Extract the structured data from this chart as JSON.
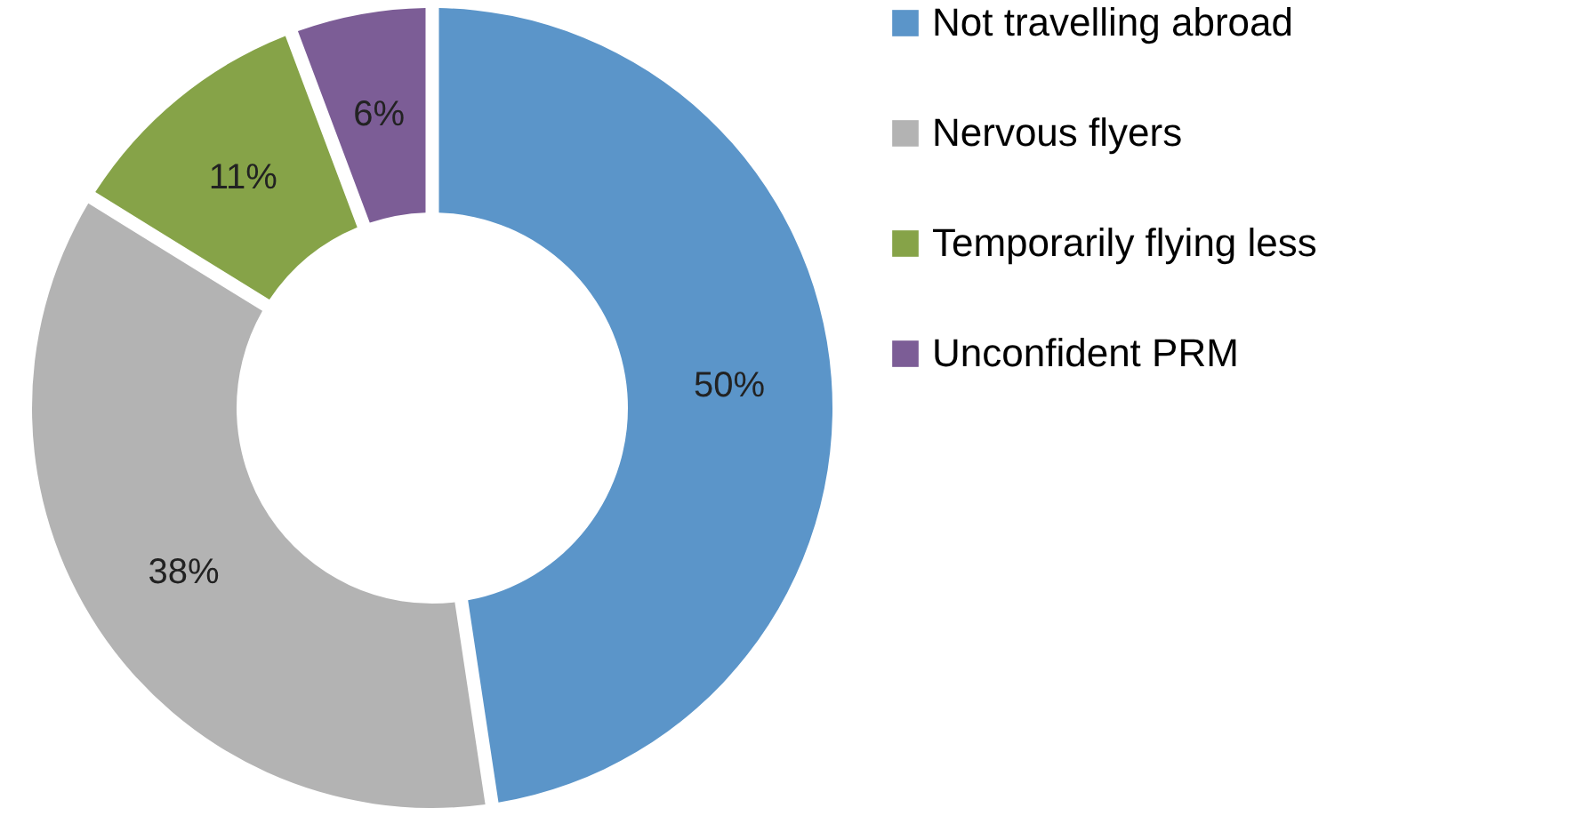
{
  "chart_data": {
    "type": "donut",
    "categories": [
      "Not travelling abroad",
      "Nervous flyers",
      "Temporarily flying less",
      "Unconfident PRM"
    ],
    "values": [
      50,
      38,
      11,
      6
    ],
    "value_labels": [
      "50%",
      "38%",
      "11%",
      "6%"
    ],
    "colors": [
      "#5b95c9",
      "#b3b3b3",
      "#86a348",
      "#7c5d96"
    ],
    "legend": "right"
  }
}
